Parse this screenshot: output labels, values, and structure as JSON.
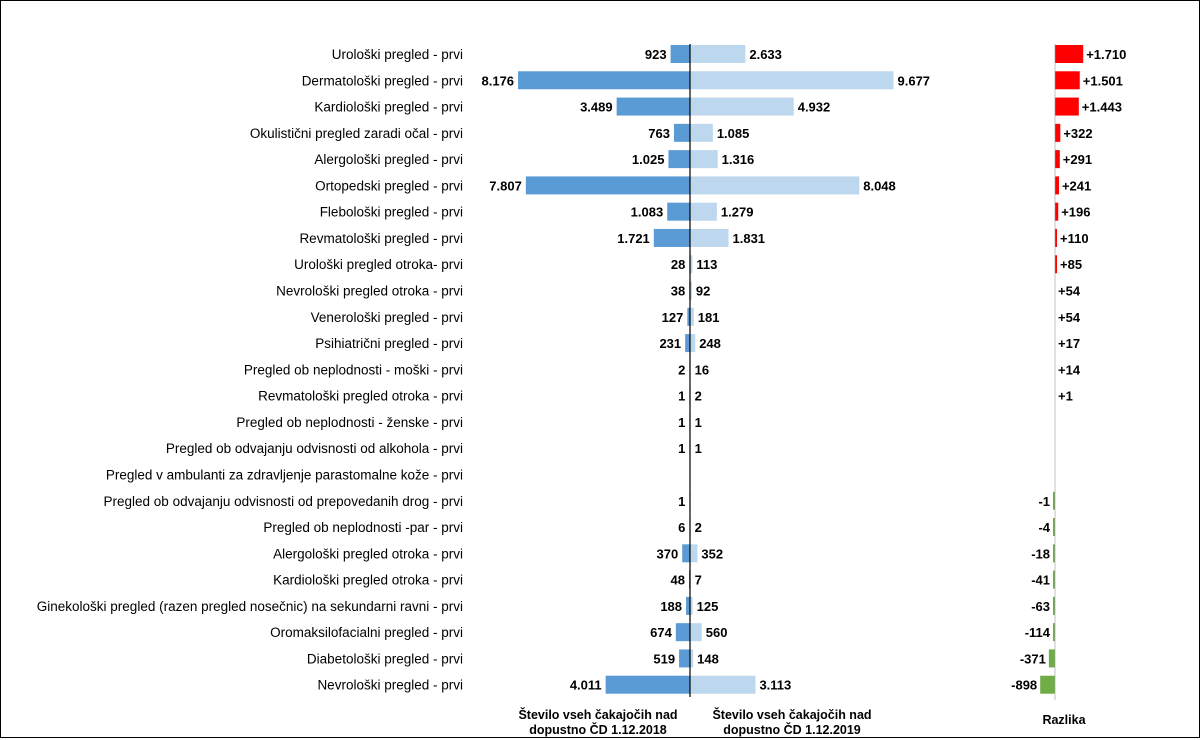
{
  "chart_data": {
    "type": "bar",
    "categories": [
      "Urološki pregled - prvi",
      "Dermatološki pregled - prvi",
      "Kardiološki pregled - prvi",
      "Okulistični pregled zaradi očal - prvi",
      "Alergološki pregled - prvi",
      "Ortopedski pregled - prvi",
      "Flebološki pregled - prvi",
      "Revmatološki pregled - prvi",
      "Urološki pregled otroka- prvi",
      "Nevrološki pregled otroka - prvi",
      "Venerološki pregled - prvi",
      "Psihiatrični pregled - prvi",
      "Pregled ob neplodnosti - moški - prvi",
      "Revmatološki pregled otroka - prvi",
      "Pregled ob neplodnosti - ženske - prvi",
      "Pregled ob odvajanju odvisnosti od alkohola - prvi",
      "Pregled v ambulanti za zdravljenje parastomalne kože - prvi",
      "Pregled ob odvajanju odvisnosti od prepovedanih drog - prvi",
      "Pregled ob neplodnosti -par - prvi",
      "Alergološki pregled otroka - prvi",
      "Kardiološki pregled otroka - prvi",
      "Ginekološki pregled (razen pregled nosečnic) na sekundarni ravni - prvi",
      "Oromaksilofacialni pregled - prvi",
      "Diabetološki pregled - prvi",
      "Nevrološki pregled - prvi"
    ],
    "series": [
      {
        "name": "Število vseh čakajočih nad dopustno ČD 1.12.2018",
        "color": "#5b9bd5",
        "values": [
          923,
          8176,
          3489,
          763,
          1025,
          7807,
          1083,
          1721,
          28,
          38,
          127,
          231,
          2,
          1,
          1,
          1,
          null,
          1,
          6,
          370,
          48,
          188,
          674,
          519,
          4011
        ],
        "labels": [
          "923",
          "8.176",
          "3.489",
          "763",
          "1.025",
          "7.807",
          "1.083",
          "1.721",
          "28",
          "38",
          "127",
          "231",
          "2",
          "1",
          "1",
          "1",
          "",
          "1",
          "6",
          "370",
          "48",
          "188",
          "674",
          "519",
          "4.011"
        ]
      },
      {
        "name": "Število vseh čakajočih nad dopustno ČD 1.12.2019",
        "color": "#bdd7ee",
        "values": [
          2633,
          9677,
          4932,
          1085,
          1316,
          8048,
          1279,
          1831,
          113,
          92,
          181,
          248,
          16,
          2,
          1,
          1,
          null,
          null,
          2,
          352,
          7,
          125,
          560,
          148,
          3113
        ],
        "labels": [
          "2.633",
          "9.677",
          "4.932",
          "1.085",
          "1.316",
          "8.048",
          "1.279",
          "1.831",
          "113",
          "92",
          "181",
          "248",
          "16",
          "2",
          "1",
          "1",
          "",
          "",
          "2",
          "352",
          "7",
          "125",
          "560",
          "148",
          "3.113"
        ]
      },
      {
        "name": "Razlika",
        "values": [
          1710,
          1501,
          1443,
          322,
          291,
          241,
          196,
          110,
          85,
          54,
          54,
          17,
          14,
          1,
          null,
          null,
          null,
          -1,
          -4,
          -18,
          -41,
          -63,
          -114,
          -371,
          -898
        ],
        "labels": [
          "+1.710",
          "+1.501",
          "+1.443",
          "+322",
          "+291",
          "+241",
          "+196",
          "+110",
          "+85",
          "+54",
          "+54",
          "+17",
          "+14",
          "+1",
          "",
          "",
          "",
          "-1",
          "-4",
          "-18",
          "-41",
          "-63",
          "-114",
          "-371",
          "-898"
        ],
        "positive_color": "#ff0000",
        "negative_color": "#70ad47"
      }
    ],
    "left_axis_label": [
      "Število vseh čakajočih nad",
      "dopustno ČD 1.12.2018"
    ],
    "right_axis_label": [
      "Število vseh čakajočih nad",
      "dopustno ČD  1.12.2019"
    ],
    "diff_axis_label": "Razlika",
    "grid": false,
    "legend": "none"
  }
}
